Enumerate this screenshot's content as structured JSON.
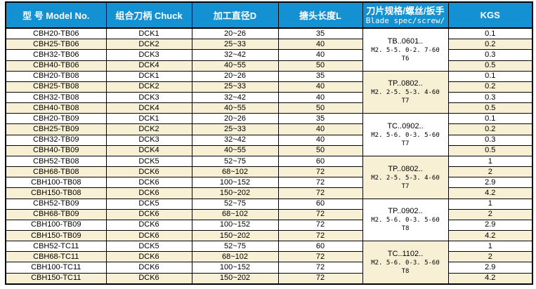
{
  "colors": {
    "header_bg": "#1491d2",
    "header_text": "#ffffff",
    "row_alt_bg": "#f8f0d4",
    "border": "#000000"
  },
  "header": {
    "model": "型 号 Model No.",
    "chuck": "组合刀柄 Chuck",
    "diameter": "加工直径D",
    "length": "搪头长度L",
    "blade_zh": "刀片规格/螺丝/扳手",
    "blade_en": "Blade spec/screw/",
    "kgs": "KGS"
  },
  "specs": [
    {
      "line1": "TB..0601..",
      "line2": "M2. 5-5. 0-2. 7-60",
      "line3": "T6"
    },
    {
      "line1": "TP..0802..",
      "line2": "M2. 2-5. 5-3. 4-60",
      "line3": "T7"
    },
    {
      "line1": "TC..0902..",
      "line2": "M2. 5-6. 0-3. 5-60",
      "line3": "T7"
    },
    {
      "line1": "TP..0802..",
      "line2": "M2. 2-5. 5-3. 4-60",
      "line3": "T7"
    },
    {
      "line1": "TP..0902..",
      "line2": "M2. 5-6. 0-3. 5-60",
      "line3": "T8"
    },
    {
      "line1": "TC..1102..",
      "line2": "M2. 5-6. 0-3. 5-60",
      "line3": "T8"
    }
  ],
  "rows": [
    {
      "model": "CBH20-TB06",
      "chuck": "DCK1",
      "diameter": "20~26",
      "length": "35",
      "kgs": "0.1"
    },
    {
      "model": "CBH25-TB06",
      "chuck": "DCK2",
      "diameter": "25~33",
      "length": "40",
      "kgs": "0.2"
    },
    {
      "model": "CBH32-TB06",
      "chuck": "DCK3",
      "diameter": "32~42",
      "length": "40",
      "kgs": "0.3"
    },
    {
      "model": "CBH40-TB06",
      "chuck": "DCK4",
      "diameter": "40~55",
      "length": "50",
      "kgs": "0.5"
    },
    {
      "model": "CBH20-TB08",
      "chuck": "DCK1",
      "diameter": "20~26",
      "length": "35",
      "kgs": "0.1"
    },
    {
      "model": "CBH25-TB08",
      "chuck": "DCK2",
      "diameter": "25~33",
      "length": "40",
      "kgs": "0.2"
    },
    {
      "model": "CBH32-TB08",
      "chuck": "DCK3",
      "diameter": "32~42",
      "length": "40",
      "kgs": "0.3"
    },
    {
      "model": "CBH40-TB08",
      "chuck": "DCK4",
      "diameter": "40~55",
      "length": "50",
      "kgs": "0.5"
    },
    {
      "model": "CBH20-TB09",
      "chuck": "DCK1",
      "diameter": "20~26",
      "length": "35",
      "kgs": "0.1"
    },
    {
      "model": "CBH25-TB09",
      "chuck": "DCK2",
      "diameter": "25~33",
      "length": "40",
      "kgs": "0.2"
    },
    {
      "model": "CBH32-TB09",
      "chuck": "DCK3",
      "diameter": "32~42",
      "length": "40",
      "kgs": "0.3"
    },
    {
      "model": "CBH40-TB09",
      "chuck": "DCK4",
      "diameter": "40~55",
      "length": "50",
      "kgs": "0.5"
    },
    {
      "model": "CBH52-TB08",
      "chuck": "DCK5",
      "diameter": "52~75",
      "length": "60",
      "kgs": "1"
    },
    {
      "model": "CBH68-TB08",
      "chuck": "DCK6",
      "diameter": "68~102",
      "length": "72",
      "kgs": "2"
    },
    {
      "model": "CBH100-TB08",
      "chuck": "DCK6",
      "diameter": "100~152",
      "length": "72",
      "kgs": "2.9"
    },
    {
      "model": "CBH150-TB08",
      "chuck": "DCK6",
      "diameter": "150~202",
      "length": "72",
      "kgs": "4.2"
    },
    {
      "model": "CBH52-TB09",
      "chuck": "DCK5",
      "diameter": "52~75",
      "length": "60",
      "kgs": "1"
    },
    {
      "model": "CBH68-TB09",
      "chuck": "DCK6",
      "diameter": "68~102",
      "length": "72",
      "kgs": "2"
    },
    {
      "model": "CBH100-TB09",
      "chuck": "DCK6",
      "diameter": "100~152",
      "length": "72",
      "kgs": "2.9"
    },
    {
      "model": "CBH150-TB09",
      "chuck": "DCK6",
      "diameter": "150~202",
      "length": "72",
      "kgs": "4.2"
    },
    {
      "model": "CBH52-TC11",
      "chuck": "DCK5",
      "diameter": "52~75",
      "length": "60",
      "kgs": "1"
    },
    {
      "model": "CBH68-TC11",
      "chuck": "DCK6",
      "diameter": "68~102",
      "length": "72",
      "kgs": "2"
    },
    {
      "model": "CBH100-TC11",
      "chuck": "DCK6",
      "diameter": "100~152",
      "length": "72",
      "kgs": "2.9"
    },
    {
      "model": "CBH150-TC11",
      "chuck": "DCK6",
      "diameter": "150~202",
      "length": "72",
      "kgs": "4.2"
    }
  ]
}
